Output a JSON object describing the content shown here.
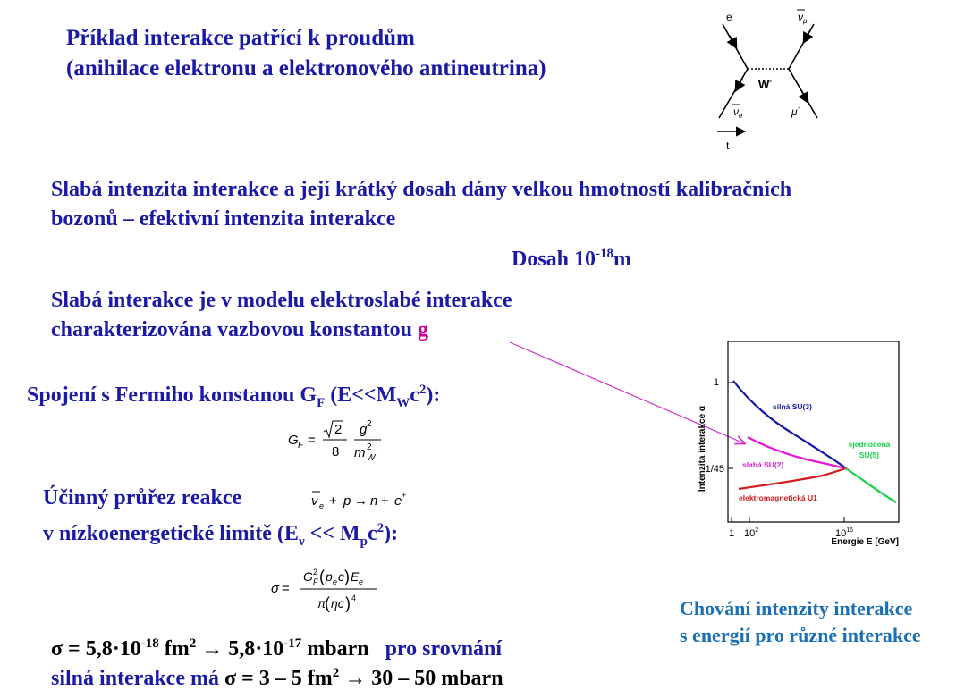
{
  "example": {
    "title": "Příklad interakce patřící k  proudům",
    "subtitle": "(anihilace elektronu a elektronového antineutrina)"
  },
  "feynman": {
    "e_minus": "e",
    "nubar_mu": "ν",
    "w_label": "W",
    "nubar_e": "ν",
    "mu_minus": "μ",
    "time": "t"
  },
  "intensity": {
    "line1": "Slabá intenzita interakce a její krátký dosah dány velkou hmotností kalibračních",
    "line2": "bozonů – efektivní intenzita interakce",
    "range_label": "Dosah 10",
    "range_exp": "-18",
    "range_unit": "m"
  },
  "electroweak": {
    "line1": "Slabá interakce je v modelu elektroslabé interakce",
    "line2": "charakterizována vazbovou konstantou",
    "constant": "g"
  },
  "fermi": {
    "text": "Spojení s Fermiho konstanou G",
    "sub_f": "F",
    "paren": " (E<<M",
    "sub_w": "W",
    "c2": "c",
    "end": "):"
  },
  "cross_section": {
    "line1": "Účinný průřez reakce",
    "line2_pre": "v nízkoenergetické limitě (E",
    "sub_nu": "ν",
    "line2_mid": " << M",
    "sub_p": "p",
    "line2_end": "c",
    "line2_close": "):"
  },
  "result": {
    "line1_a": "σ = 5,8·10",
    "exp1": "-18",
    "line1_b": " fm",
    "arrow1": " →   5,8·10",
    "exp2": "-17",
    "line1_c": " mbarn",
    "compare": "pro srovnání",
    "line2_a": "silná interakce má",
    "line2_b": " σ = 3 – 5 fm",
    "line2_c": " → 30 – 50 mbarn"
  },
  "plot_caption": {
    "line1": "Chování intenzity interakce",
    "line2": "s energií pro různé interakce"
  },
  "chart_data": {
    "type": "line",
    "ylabel": "Intenzita interakce α",
    "xlabel": "Energie E [GeV]",
    "y_ticks": [
      "1",
      "1/45"
    ],
    "x_ticks": [
      "1",
      "10",
      "10"
    ],
    "x_tick_exps": [
      "",
      "2",
      "15"
    ],
    "series": [
      {
        "name": "silná SU(3)",
        "color": "#1515a8"
      },
      {
        "name": "slabá SU(2)",
        "color": "#e01ad6"
      },
      {
        "name": "elektromagnetická U1",
        "color": "#d41a1a"
      },
      {
        "name": "sjednocená SU(5)",
        "color": "#19d24a"
      }
    ],
    "labels": {
      "strong": "silná SU(3)",
      "weak": "slabá SU(2)",
      "em": "elektromagnetická U1",
      "unified1": "sjednocená",
      "unified2": "SU(5)"
    }
  }
}
